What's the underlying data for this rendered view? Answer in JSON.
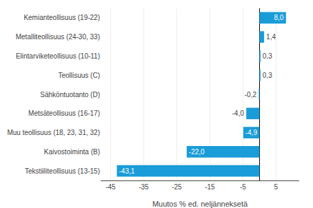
{
  "chart_data": {
    "type": "bar",
    "orientation": "horizontal",
    "categories": [
      "Tekstiiliteollisuus (13-15)",
      "Kaivostoiminta (B)",
      "Muu teollisuus (18, 23, 31, 32)",
      "Metsäteollisuus (16-17)",
      "Sähköntuotanto (D)",
      "Teollisuus (C)",
      "Elintarviketeollisuus (10-11)",
      "Metalliteollisuus (24-30, 33)",
      "Kemianteollisuus (19-22)"
    ],
    "values": [
      -43.1,
      -22.0,
      -4.9,
      -4.0,
      -0.2,
      0.3,
      0.3,
      1.4,
      8.0
    ],
    "value_labels": [
      "-43,1",
      "-22,0",
      "-4,9",
      "-4,0",
      "-0,2",
      "0,3",
      "0,3",
      "1,4",
      "8,0"
    ],
    "color": "#1a9cd8",
    "xlabel": "Muutos % ed. neljänneksetä",
    "xlim": [
      -48,
      12
    ],
    "xticks": [
      -45,
      -35,
      -25,
      -15,
      -5,
      5
    ],
    "grid": true
  }
}
